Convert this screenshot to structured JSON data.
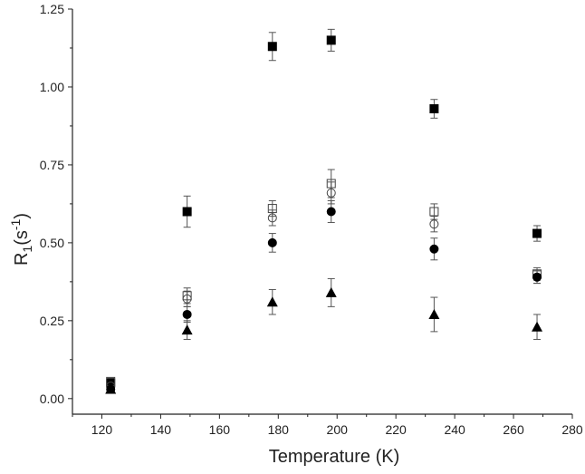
{
  "chart_data": {
    "type": "scatter",
    "xlabel": "Temperature (K)",
    "ylabel": {
      "main": "R",
      "sub": "1",
      "paren_open": "(s",
      "sup": "-1",
      "paren_close": ")"
    },
    "xlim": [
      110,
      280
    ],
    "ylim": [
      -0.05,
      1.25
    ],
    "xticks": [
      120,
      140,
      160,
      180,
      200,
      220,
      240,
      260,
      280
    ],
    "yticks": [
      0.0,
      0.25,
      0.5,
      0.75,
      1.0,
      1.25
    ],
    "ytick_labels": [
      "0.00",
      "0.25",
      "0.50",
      "0.75",
      "1.00",
      "1.25"
    ],
    "grid": false,
    "series": [
      {
        "marker": "filled-square",
        "points": [
          {
            "x": 123,
            "y": 0.05,
            "err": 0.01
          },
          {
            "x": 149,
            "y": 0.6,
            "err": 0.05
          },
          {
            "x": 178,
            "y": 1.13,
            "err": 0.045
          },
          {
            "x": 198,
            "y": 1.15,
            "err": 0.035
          },
          {
            "x": 233,
            "y": 0.93,
            "err": 0.03
          },
          {
            "x": 268,
            "y": 0.53,
            "err": 0.025
          }
        ]
      },
      {
        "marker": "open-square",
        "points": [
          {
            "x": 123,
            "y": 0.055,
            "err": 0.01
          },
          {
            "x": 149,
            "y": 0.33,
            "err": 0.025
          },
          {
            "x": 178,
            "y": 0.61,
            "err": 0.025
          },
          {
            "x": 198,
            "y": 0.69,
            "err": 0.045
          },
          {
            "x": 233,
            "y": 0.6,
            "err": 0.025
          },
          {
            "x": 268,
            "y": 0.4,
            "err": 0.02
          }
        ]
      },
      {
        "marker": "open-circle",
        "points": [
          {
            "x": 123,
            "y": 0.04,
            "err": 0.01
          },
          {
            "x": 149,
            "y": 0.32,
            "err": 0.025
          },
          {
            "x": 178,
            "y": 0.58,
            "err": 0.025
          },
          {
            "x": 198,
            "y": 0.66,
            "err": 0.035
          },
          {
            "x": 233,
            "y": 0.56,
            "err": 0.025
          },
          {
            "x": 268,
            "y": 0.39,
            "err": 0.02
          }
        ]
      },
      {
        "marker": "filled-circle",
        "points": [
          {
            "x": 123,
            "y": 0.03,
            "err": 0.01
          },
          {
            "x": 149,
            "y": 0.27,
            "err": 0.025
          },
          {
            "x": 178,
            "y": 0.5,
            "err": 0.03
          },
          {
            "x": 198,
            "y": 0.6,
            "err": 0.035
          },
          {
            "x": 233,
            "y": 0.48,
            "err": 0.035
          },
          {
            "x": 268,
            "y": 0.39,
            "err": 0.02
          }
        ]
      },
      {
        "marker": "filled-triangle",
        "points": [
          {
            "x": 123,
            "y": 0.03,
            "err": 0.01
          },
          {
            "x": 149,
            "y": 0.22,
            "err": 0.03
          },
          {
            "x": 178,
            "y": 0.31,
            "err": 0.04
          },
          {
            "x": 198,
            "y": 0.34,
            "err": 0.045
          },
          {
            "x": 233,
            "y": 0.27,
            "err": 0.055
          },
          {
            "x": 268,
            "y": 0.23,
            "err": 0.04
          }
        ]
      }
    ]
  }
}
